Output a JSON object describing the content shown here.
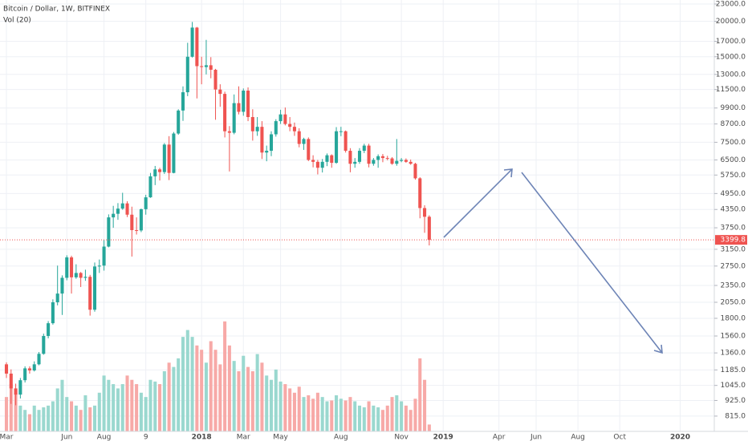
{
  "chart_data": {
    "type": "candlestick",
    "title": "Bitcoin / Dollar, 1W, BITFINEX",
    "volume_title": "Vol (20)",
    "up_color": "#26a69a",
    "down_color": "#ef5350",
    "volume_up_color": "#9ad8cf",
    "volume_down_color": "#f7a9a7",
    "log_scale": true,
    "grid": true,
    "categories": [
      "Mar",
      null,
      null,
      null,
      null,
      null,
      null,
      null,
      null,
      null,
      null,
      null,
      null,
      "Jun",
      null,
      null,
      null,
      null,
      null,
      null,
      null,
      "Aug",
      null,
      null,
      null,
      null,
      null,
      null,
      null,
      null,
      "9",
      null,
      null,
      null,
      null,
      null,
      null,
      null,
      null,
      null,
      null,
      null,
      "2018",
      null,
      null,
      null,
      null,
      null,
      null,
      null,
      null,
      "Mar",
      null,
      null,
      null,
      null,
      null,
      null,
      null,
      "May",
      null,
      null,
      null,
      null,
      null,
      null,
      null,
      null,
      null,
      null,
      null,
      null,
      "Aug",
      null,
      null,
      null,
      null,
      null,
      null,
      null,
      null,
      null,
      null,
      null,
      null,
      "Nov",
      null,
      null,
      null,
      null,
      null,
      null,
      null,
      null,
      "2019",
      null,
      null,
      null,
      null,
      null,
      null,
      null,
      null,
      null,
      null,
      null,
      "Apr",
      null,
      null,
      null,
      null,
      null,
      null,
      null,
      "Jun",
      null,
      null,
      null,
      null,
      null,
      null,
      null,
      null,
      "Aug",
      null,
      null,
      null,
      null,
      null,
      null,
      null,
      null,
      "Oct",
      null,
      null,
      null,
      null,
      null,
      null,
      null,
      null,
      null,
      null,
      null,
      null,
      "2020",
      null,
      null,
      null,
      null,
      null,
      null,
      null
    ],
    "open": [
      1240,
      1150,
      1020,
      970,
      1090,
      1200,
      1180,
      1240,
      1350,
      1560,
      1730,
      2050,
      2200,
      2500,
      2950,
      2510,
      2600,
      2500,
      2520,
      1930,
      2740,
      2760,
      3220,
      4080,
      4200,
      4380,
      4570,
      4170,
      3680,
      3670,
      4360,
      4800,
      5690,
      6020,
      5890,
      7360,
      5850,
      8050,
      9700,
      11250,
      15000,
      19000,
      13900,
      13800,
      14000,
      13500,
      11500,
      11100,
      8200,
      8100,
      10300,
      9600,
      11400,
      9200,
      8200,
      8500,
      6900,
      7000,
      8000,
      8900,
      9400,
      8700,
      8500,
      8200,
      7400,
      7700,
      6500,
      6400,
      6100,
      6400,
      6750,
      6350,
      8200,
      8200,
      7000,
      6300,
      6400,
      7000,
      7300,
      6300,
      6500,
      6700,
      6600,
      6580,
      6300,
      6450,
      6500,
      6400,
      6300,
      5600,
      4400,
      4100,
      null,
      null,
      null,
      null,
      null,
      null,
      null,
      null,
      null,
      null,
      null,
      null,
      null,
      null,
      null,
      null,
      null,
      null,
      null,
      null,
      null,
      null,
      null,
      null,
      null,
      null,
      null,
      null,
      null,
      null,
      null,
      null,
      null,
      null,
      null,
      null,
      null,
      null,
      null,
      null,
      null,
      null,
      null,
      null,
      null,
      null,
      null,
      null,
      null,
      null,
      null,
      null,
      null,
      null,
      null,
      null,
      null,
      null,
      null,
      null,
      null
    ],
    "high": [
      1260,
      1190,
      1060,
      1110,
      1220,
      1220,
      1270,
      1370,
      1590,
      1760,
      2100,
      2760,
      2550,
      3000,
      2990,
      2790,
      2620,
      2670,
      2560,
      2830,
      2900,
      3400,
      4180,
      4480,
      4580,
      4980,
      4650,
      4450,
      4080,
      4380,
      4900,
      5850,
      6190,
      6100,
      7450,
      7880,
      8150,
      9800,
      11800,
      16800,
      19890,
      19100,
      15000,
      17200,
      14950,
      13600,
      12000,
      11300,
      8550,
      11050,
      11800,
      11600,
      11700,
      9800,
      9200,
      8900,
      7300,
      8200,
      9040,
      9760,
      9940,
      9200,
      8800,
      8400,
      7780,
      7800,
      6750,
      6500,
      6550,
      6850,
      6800,
      8480,
      8500,
      8250,
      7150,
      6600,
      7150,
      7410,
      7410,
      6600,
      6800,
      6820,
      6720,
      6650,
      7700,
      6600,
      6580,
      6520,
      6350,
      5650,
      4500,
      4150,
      null,
      null,
      null,
      null,
      null,
      null,
      null,
      null,
      null,
      null,
      null,
      null,
      null,
      null,
      null,
      null,
      null,
      null,
      null,
      null,
      null,
      null,
      null,
      null,
      null,
      null,
      null,
      null,
      null,
      null,
      null,
      null,
      null,
      null,
      null,
      null,
      null,
      null,
      null,
      null,
      null,
      null,
      null,
      null,
      null,
      null,
      null,
      null,
      null,
      null,
      null,
      null,
      null,
      null,
      null,
      null,
      null,
      null,
      null,
      null,
      null
    ],
    "low": [
      1110,
      900,
      890,
      940,
      1070,
      1150,
      1170,
      1230,
      1340,
      1530,
      1710,
      2000,
      1850,
      2450,
      2200,
      2480,
      2320,
      2440,
      1840,
      1900,
      2600,
      2650,
      3200,
      3750,
      4000,
      4340,
      4090,
      2970,
      3550,
      3620,
      4170,
      4780,
      5300,
      5500,
      5800,
      5520,
      5830,
      7970,
      8920,
      10900,
      14900,
      10700,
      12000,
      13000,
      12600,
      9000,
      10000,
      7800,
      5920,
      8000,
      9400,
      9300,
      8900,
      7600,
      7900,
      6550,
      6430,
      6700,
      7850,
      8700,
      8600,
      8200,
      7900,
      7200,
      7050,
      6440,
      6120,
      5780,
      5870,
      6180,
      6100,
      6300,
      7880,
      6900,
      5880,
      6100,
      6300,
      6870,
      6120,
      6200,
      6100,
      6380,
      6480,
      6250,
      6200,
      6380,
      6350,
      6250,
      5540,
      4050,
      3600,
      3250,
      null,
      null,
      null,
      null,
      null,
      null,
      null,
      null,
      null,
      null,
      null,
      null,
      null,
      null,
      null,
      null,
      null,
      null,
      null,
      null,
      null,
      null,
      null,
      null,
      null,
      null,
      null,
      null,
      null,
      null,
      null,
      null,
      null,
      null,
      null,
      null,
      null,
      null,
      null,
      null,
      null,
      null,
      null,
      null,
      null,
      null,
      null,
      null,
      null,
      null,
      null,
      null,
      null,
      null,
      null,
      null,
      null,
      null,
      null,
      null,
      null
    ],
    "close": [
      1150,
      1020,
      970,
      1090,
      1200,
      1180,
      1240,
      1350,
      1560,
      1730,
      2050,
      2200,
      2500,
      2950,
      2510,
      2600,
      2500,
      2520,
      1930,
      2740,
      2760,
      3220,
      4080,
      4200,
      4380,
      4570,
      4170,
      3680,
      3670,
      4360,
      4800,
      5690,
      6020,
      5890,
      7360,
      5850,
      8050,
      9700,
      11250,
      15000,
      19000,
      13900,
      13800,
      14000,
      13500,
      11500,
      11100,
      8200,
      8100,
      10300,
      9600,
      11400,
      9200,
      8200,
      8500,
      6900,
      7000,
      8000,
      8900,
      9400,
      8700,
      8500,
      8200,
      7400,
      7700,
      6500,
      6400,
      6100,
      6400,
      6750,
      6350,
      8200,
      8200,
      7000,
      6300,
      6400,
      7000,
      7300,
      6300,
      6500,
      6700,
      6600,
      6580,
      6300,
      6450,
      6500,
      6400,
      6300,
      5600,
      4400,
      4100,
      3399.8,
      null,
      null,
      null,
      null,
      null,
      null,
      null,
      null,
      null,
      null,
      null,
      null,
      null,
      null,
      null,
      null,
      null,
      null,
      null,
      null,
      null,
      null,
      null,
      null,
      null,
      null,
      null,
      null,
      null,
      null,
      null,
      null,
      null,
      null,
      null,
      null,
      null,
      null,
      null,
      null,
      null,
      null,
      null,
      null,
      null,
      null,
      null,
      null,
      null,
      null,
      null,
      null,
      null,
      null,
      null,
      null,
      null,
      null,
      null,
      null,
      null
    ],
    "volume": [
      40,
      55,
      45,
      30,
      25,
      20,
      30,
      25,
      28,
      30,
      35,
      50,
      60,
      40,
      35,
      30,
      25,
      42,
      28,
      30,
      45,
      65,
      60,
      55,
      50,
      55,
      65,
      60,
      55,
      45,
      40,
      60,
      58,
      55,
      70,
      80,
      75,
      85,
      110,
      118,
      110,
      100,
      95,
      80,
      105,
      95,
      78,
      128,
      100,
      82,
      70,
      88,
      75,
      70,
      90,
      80,
      65,
      60,
      72,
      58,
      55,
      50,
      45,
      52,
      40,
      42,
      38,
      45,
      40,
      35,
      36,
      42,
      38,
      36,
      40,
      35,
      30,
      28,
      35,
      30,
      28,
      25,
      30,
      40,
      42,
      35,
      30,
      25,
      38,
      85,
      60,
      8,
      null,
      null,
      null,
      null,
      null,
      null,
      null,
      null,
      null,
      null,
      null,
      null,
      null,
      null,
      null,
      null,
      null,
      null,
      null,
      null,
      null,
      null,
      null,
      null,
      null,
      null,
      null,
      null,
      null,
      null,
      null,
      null,
      null,
      null,
      null,
      null,
      null,
      null,
      null,
      null,
      null,
      null,
      null,
      null,
      null,
      null,
      null,
      null,
      null,
      null,
      null,
      null,
      null,
      null,
      null,
      null,
      null,
      null,
      null,
      null,
      null
    ],
    "volume_lim": [
      0,
      140
    ],
    "ylim": [
      720,
      23760
    ],
    "yticks": [
      {
        "value": 23000,
        "label": "23000.0"
      },
      {
        "value": 20000,
        "label": "20000.0"
      },
      {
        "value": 17000,
        "label": "17000.0"
      },
      {
        "value": 15000,
        "label": "15000.0"
      },
      {
        "value": 13000,
        "label": "13000.0"
      },
      {
        "value": 11500,
        "label": "11500.0"
      },
      {
        "value": 9900,
        "label": "9900.0"
      },
      {
        "value": 8700,
        "label": "8700.0"
      },
      {
        "value": 7500,
        "label": "7500.0"
      },
      {
        "value": 6500,
        "label": "6500.0"
      },
      {
        "value": 5750,
        "label": "5750.0"
      },
      {
        "value": 4950,
        "label": "4950.0"
      },
      {
        "value": 4350,
        "label": "4350.0"
      },
      {
        "value": 3750,
        "label": "3750.0"
      },
      {
        "value": 3150,
        "label": "3150.0"
      },
      {
        "value": 2750,
        "label": "2750.0"
      },
      {
        "value": 2350,
        "label": "2350.0"
      },
      {
        "value": 2050,
        "label": "2050.0"
      },
      {
        "value": 1800,
        "label": "1800.0"
      },
      {
        "value": 1560,
        "label": "1560.0"
      },
      {
        "value": 1360,
        "label": "1360.0"
      },
      {
        "value": 1185,
        "label": "1185.0"
      },
      {
        "value": 1045,
        "label": "1045.0"
      },
      {
        "value": 925,
        "label": "925.0"
      },
      {
        "value": 815,
        "label": "815.0"
      }
    ]
  }
}
